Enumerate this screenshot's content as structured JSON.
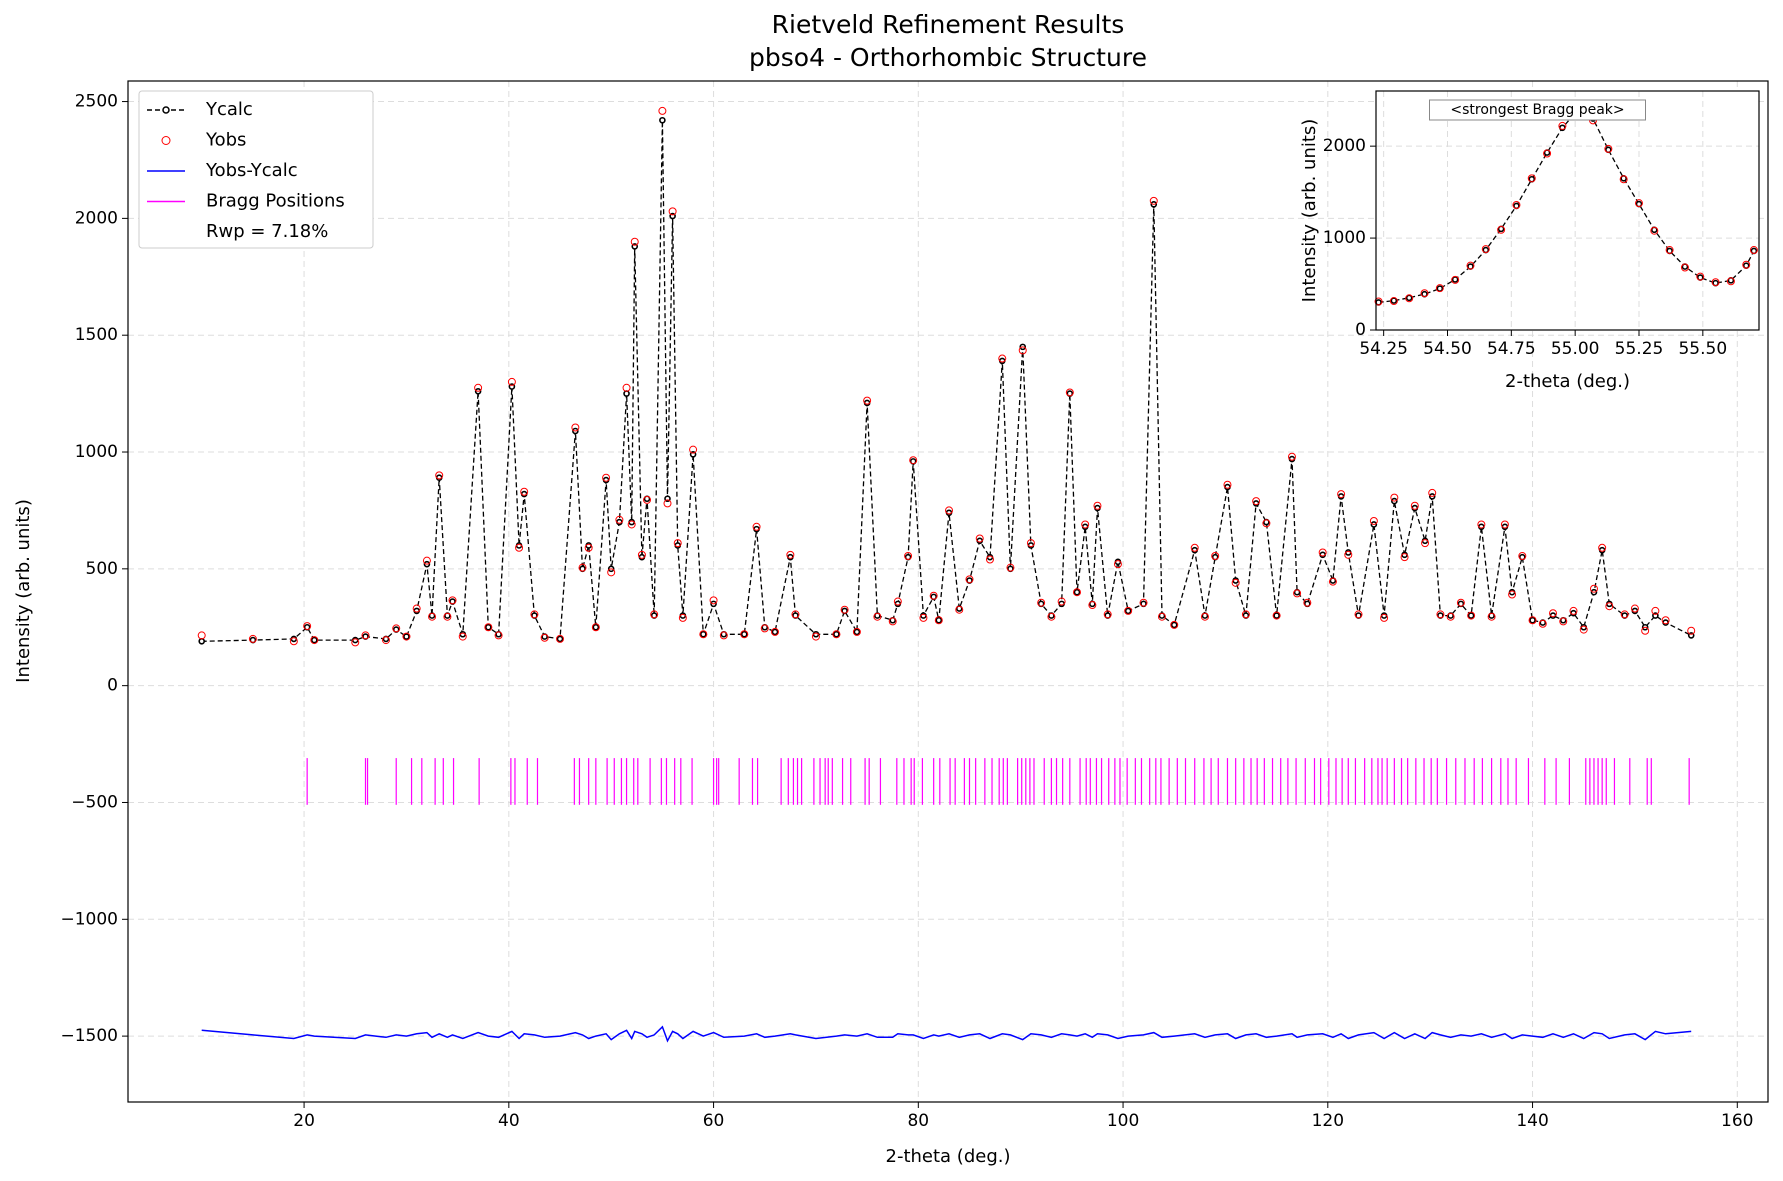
{
  "chart_data": {
    "type": "rietveld",
    "title": "Rietveld Refinement Results",
    "subtitle": "pbso4 - Orthorhombic Structure",
    "x_label": "2-theta (deg.)",
    "y_label": "Intensity (arb. units)",
    "xlim": [
      2.8,
      163
    ],
    "ylim": [
      -1782,
      2588
    ],
    "xticks": [
      20,
      40,
      60,
      80,
      100,
      120,
      140,
      160
    ],
    "yticks": [
      {
        "value": -1500,
        "label": "−1500"
      },
      {
        "value": -1000,
        "label": "−1000"
      },
      {
        "value": -500,
        "label": "−500"
      },
      0,
      500,
      1000,
      1500,
      2000,
      2500
    ],
    "grid": true,
    "legend": "upper left",
    "legend_note": "Rwp = 7.18%",
    "x": [
      10,
      15,
      19,
      20.3,
      21,
      25,
      26,
      28,
      29,
      30,
      31,
      32,
      32.5,
      33.2,
      34,
      34.5,
      35.5,
      37,
      38,
      39,
      40.3,
      41,
      41.5,
      42.5,
      43.5,
      45,
      46.5,
      47.2,
      47.8,
      48.5,
      49.5,
      50,
      50.8,
      51.5,
      52,
      52.3,
      53,
      53.5,
      54.2,
      55,
      55.5,
      56,
      56.5,
      57,
      58,
      59,
      60,
      61,
      63,
      64.2,
      65,
      66,
      67.5,
      68,
      70,
      72,
      72.8,
      74,
      75,
      76,
      77.5,
      78,
      79,
      79.5,
      80.5,
      81.5,
      82,
      83,
      84,
      85,
      86,
      87,
      88.2,
      89,
      90.2,
      91,
      92,
      93,
      94,
      94.8,
      95.5,
      96.3,
      97,
      97.5,
      98.5,
      99.5,
      100.5,
      102,
      103,
      103.8,
      105,
      107,
      108,
      109,
      110.2,
      111,
      112,
      113,
      114,
      115,
      116.5,
      117,
      118,
      119.5,
      120.5,
      121.3,
      122,
      123,
      124.5,
      125.5,
      126.5,
      127.5,
      128.5,
      129.5,
      130.2,
      131,
      132,
      133,
      134,
      135,
      136,
      137.3,
      138,
      139,
      140,
      141,
      142,
      143,
      144,
      145,
      146,
      146.8,
      147.5,
      149,
      150,
      151,
      152,
      153,
      155.5
    ],
    "series": [
      {
        "name": "Ycalc",
        "color": "#000000",
        "values": [
          190,
          195,
          200,
          250,
          195,
          195,
          210,
          200,
          240,
          210,
          320,
          520,
          300,
          890,
          300,
          360,
          220,
          1260,
          250,
          220,
          1280,
          600,
          820,
          300,
          210,
          200,
          1090,
          500,
          600,
          250,
          880,
          500,
          700,
          1250,
          700,
          1880,
          550,
          800,
          300,
          2420,
          800,
          2010,
          600,
          300,
          990,
          220,
          350,
          220,
          220,
          670,
          250,
          230,
          550,
          300,
          220,
          220,
          320,
          230,
          1210,
          300,
          280,
          350,
          550,
          960,
          300,
          380,
          280,
          740,
          330,
          450,
          620,
          550,
          1390,
          500,
          1450,
          600,
          350,
          300,
          350,
          1250,
          400,
          680,
          350,
          760,
          300,
          530,
          320,
          350,
          2060,
          300,
          260,
          580,
          300,
          550,
          850,
          450,
          300,
          780,
          700,
          300,
          970,
          400,
          350,
          560,
          450,
          810,
          570,
          300,
          690,
          300,
          790,
          560,
          760,
          620,
          810,
          300,
          300,
          350,
          300,
          680,
          300,
          680,
          400,
          550,
          280,
          270,
          300,
          280,
          310,
          250,
          400,
          580,
          350,
          300,
          320,
          250,
          300,
          270,
          215
        ]
      },
      {
        "name": "Yobs",
        "color": "#ff0000",
        "values": [
          215,
          200,
          190,
          255,
          195,
          185,
          215,
          195,
          245,
          210,
          330,
          535,
          295,
          900,
          295,
          365,
          210,
          1275,
          250,
          215,
          1300,
          590,
          830,
          305,
          205,
          200,
          1105,
          505,
          590,
          250,
          890,
          485,
          710,
          1275,
          690,
          1900,
          560,
          795,
          305,
          2460,
          780,
          2030,
          610,
          290,
          1010,
          220,
          365,
          215,
          220,
          680,
          245,
          230,
          560,
          305,
          210,
          220,
          325,
          230,
          1220,
          295,
          275,
          360,
          555,
          965,
          290,
          385,
          280,
          750,
          325,
          455,
          630,
          540,
          1400,
          505,
          1435,
          610,
          355,
          295,
          360,
          1255,
          400,
          690,
          345,
          770,
          305,
          520,
          320,
          355,
          2075,
          295,
          260,
          590,
          295,
          555,
          860,
          440,
          305,
          790,
          695,
          300,
          980,
          395,
          355,
          570,
          445,
          820,
          560,
          305,
          705,
          290,
          805,
          550,
          770,
          610,
          825,
          305,
          295,
          355,
          300,
          690,
          295,
          690,
          390,
          555,
          280,
          265,
          310,
          275,
          320,
          240,
          415,
          590,
          340,
          305,
          330,
          235,
          320,
          280,
          235
        ]
      },
      {
        "name": "Yobs-Ycalc",
        "color": "#0000ff",
        "values": [
          -1475,
          -1495,
          -1510,
          -1495,
          -1500,
          -1510,
          -1495,
          -1505,
          -1495,
          -1500,
          -1490,
          -1485,
          -1505,
          -1490,
          -1505,
          -1495,
          -1510,
          -1485,
          -1500,
          -1505,
          -1480,
          -1510,
          -1490,
          -1495,
          -1505,
          -1500,
          -1485,
          -1495,
          -1510,
          -1500,
          -1490,
          -1515,
          -1490,
          -1475,
          -1510,
          -1480,
          -1490,
          -1505,
          -1495,
          -1460,
          -1520,
          -1480,
          -1490,
          -1510,
          -1480,
          -1500,
          -1485,
          -1505,
          -1500,
          -1490,
          -1505,
          -1500,
          -1490,
          -1495,
          -1510,
          -1500,
          -1495,
          -1500,
          -1490,
          -1505,
          -1505,
          -1490,
          -1495,
          -1495,
          -1510,
          -1495,
          -1500,
          -1490,
          -1505,
          -1495,
          -1490,
          -1510,
          -1490,
          -1495,
          -1515,
          -1490,
          -1495,
          -1505,
          -1490,
          -1495,
          -1500,
          -1490,
          -1505,
          -1490,
          -1495,
          -1510,
          -1500,
          -1495,
          -1485,
          -1505,
          -1500,
          -1490,
          -1505,
          -1495,
          -1490,
          -1510,
          -1495,
          -1490,
          -1505,
          -1500,
          -1490,
          -1505,
          -1495,
          -1490,
          -1505,
          -1490,
          -1510,
          -1495,
          -1485,
          -1510,
          -1485,
          -1510,
          -1490,
          -1510,
          -1485,
          -1495,
          -1505,
          -1495,
          -1500,
          -1490,
          -1505,
          -1490,
          -1510,
          -1495,
          -1500,
          -1505,
          -1490,
          -1505,
          -1490,
          -1510,
          -1485,
          -1490,
          -1510,
          -1495,
          -1490,
          -1515,
          -1480,
          -1490,
          -1480
        ]
      },
      {
        "name": "Bragg Positions",
        "color": "#ff00ff",
        "span": [
          -310,
          -510
        ],
        "positions": [
          20.3,
          26,
          26.2,
          29,
          30.5,
          31.5,
          32.8,
          33.6,
          34.6,
          37.1,
          40.2,
          40.6,
          41.8,
          42.8,
          46.4,
          46.9,
          47.8,
          48.5,
          49.6,
          50.3,
          51,
          51.5,
          52.2,
          52.6,
          53.8,
          54.9,
          55.4,
          56.2,
          56.8,
          57.9,
          60,
          60.3,
          60.5,
          62.5,
          63.8,
          64.3,
          66.6,
          67.3,
          67.8,
          68.2,
          68.6,
          69.8,
          70.4,
          70.9,
          71.2,
          71.6,
          72.6,
          73.4,
          74.8,
          75.2,
          76.3,
          77.9,
          78.6,
          79.3,
          79.6,
          80.4,
          81.5,
          82.1,
          83.1,
          83.6,
          84.5,
          85,
          85.6,
          86.5,
          87.2,
          87.9,
          88.3,
          88.7,
          89.7,
          90.1,
          90.5,
          90.9,
          91.3,
          92.3,
          93,
          93.5,
          94.1,
          94.8,
          95.8,
          96.4,
          96.8,
          97.4,
          97.9,
          98.6,
          99.2,
          99.7,
          100.4,
          101.2,
          101.8,
          102.6,
          103.2,
          103.7,
          104.5,
          105.3,
          106.1,
          107,
          107.9,
          108.6,
          109.3,
          110.2,
          111,
          111.8,
          112.5,
          113.1,
          113.8,
          114.6,
          115.4,
          116.1,
          116.9,
          117.8,
          118.7,
          119.3,
          120.1,
          120.8,
          121.4,
          122,
          122.7,
          123.6,
          124.3,
          124.9,
          125.3,
          125.8,
          126.5,
          127.2,
          127.8,
          128.6,
          129.4,
          130.1,
          130.7,
          131.6,
          132.5,
          133.4,
          134.3,
          135.1,
          136,
          136.9,
          137.6,
          138.4,
          139.6,
          141.2,
          142.3,
          143.6,
          145.2,
          145.6,
          146,
          146.4,
          146.8,
          147.2,
          148,
          149.5,
          151.2,
          151.6,
          155.3
        ]
      }
    ],
    "inset": {
      "annotation": "<strongest Bragg peak>",
      "x_label": "2-theta (deg.)",
      "y_label": "Intensity (arb. units)",
      "xlim": [
        54.22,
        55.72
      ],
      "ylim": [
        0,
        2600
      ],
      "xticks": [
        54.25,
        {
          "value": 54.5,
          "label": "54.50"
        },
        54.75,
        {
          "value": 55,
          "label": "55.00"
        },
        55.25,
        {
          "value": 55.5,
          "label": "55.50"
        }
      ],
      "yticks": [
        0,
        1000,
        2000
      ],
      "x": [
        54.23,
        54.29,
        54.35,
        54.41,
        54.47,
        54.53,
        54.59,
        54.65,
        54.71,
        54.77,
        54.83,
        54.89,
        54.95,
        55.01,
        55.07,
        55.13,
        55.19,
        55.25,
        55.31,
        55.37,
        55.43,
        55.49,
        55.55,
        55.61,
        55.67,
        55.7
      ],
      "series": [
        {
          "name": "Ycalc",
          "color": "#000000",
          "values": [
            300,
            320,
            350,
            390,
            450,
            550,
            690,
            870,
            1100,
            1350,
            1640,
            1930,
            2200,
            2390,
            2300,
            1960,
            1650,
            1370,
            1090,
            860,
            690,
            570,
            510,
            540,
            700,
            860
          ]
        },
        {
          "name": "Yobs",
          "color": "#ff0000",
          "values": [
            310,
            315,
            345,
            400,
            455,
            545,
            700,
            880,
            1090,
            1360,
            1650,
            1920,
            2220,
            2400,
            2280,
            1970,
            1640,
            1380,
            1080,
            870,
            680,
            580,
            520,
            530,
            710,
            870
          ]
        }
      ]
    }
  }
}
